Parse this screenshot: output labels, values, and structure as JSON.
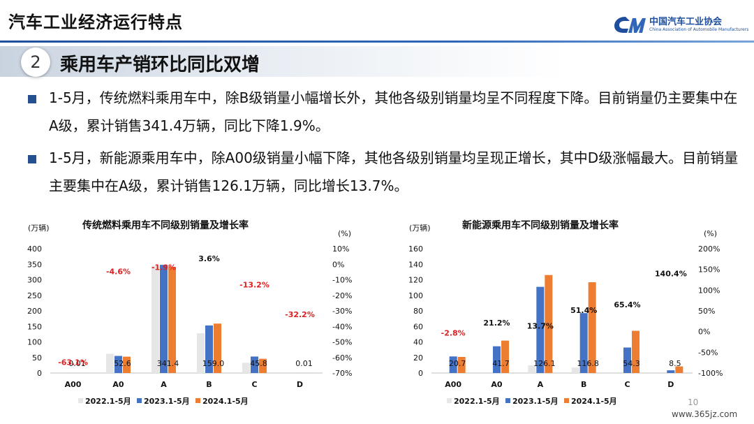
{
  "header": {
    "title": "汽车工业经济运行特点"
  },
  "logo": {
    "cn": "中国汽车工业协会",
    "en": "China Association of Automobile Manufacturers"
  },
  "section": {
    "number": "2",
    "title": "乘用车产销环比同比双增"
  },
  "bullets": [
    "1-5月，传统燃料乘用车中，除B级销量小幅增长外，其他各级别销量均呈不同程度下降。目前销量仍主要集中在A级，累计销售341.4万辆，同比下降1.9%。",
    "1-5月，新能源乘用车中，除A00级销量小幅下降，其他各级别销量均呈现正增长，其中D级涨幅最大。目前销量主要集中在A级，累计销售126.1万辆，同比增长13.7%。"
  ],
  "colors": {
    "y2022": "#e6e6e6",
    "y2023": "#4472c4",
    "y2024": "#ed7d31",
    "negative": "#e02020",
    "brand": "#1f4e9c"
  },
  "chart_data": [
    {
      "type": "bar",
      "title": "传统燃料乘用车不同级别销量及增长率",
      "left_unit": "(万辆)",
      "right_unit": "(%)",
      "categories": [
        "A00",
        "A0",
        "A",
        "B",
        "C",
        "D"
      ],
      "ylim": [
        0,
        400
      ],
      "y_ticks": [
        0,
        50,
        100,
        150,
        200,
        250,
        300,
        350,
        400
      ],
      "y2lim": [
        -70,
        10
      ],
      "y2_ticks": [
        "10%",
        "0%",
        "-10%",
        "-20%",
        "-30%",
        "-40%",
        "-50%",
        "-60%",
        "-70%"
      ],
      "series": [
        {
          "name": "2022.1-5月",
          "values": [
            0.01,
            62,
            345,
            128,
            33,
            0.01
          ]
        },
        {
          "name": "2023.1-5月",
          "values": [
            0.02,
            55,
            348,
            153,
            53,
            0.01
          ]
        },
        {
          "name": "2024.1-5月",
          "values": [
            0.01,
            52.6,
            341.4,
            159.0,
            45.8,
            0.01
          ]
        }
      ],
      "value_labels": [
        "0.01",
        "52.6",
        "341.4",
        "159.0",
        "45.8",
        "0.01"
      ],
      "growth_labels": [
        "-63.1%",
        "-4.6%",
        "-1.9%",
        "3.6%",
        "-13.2%",
        "-32.2%"
      ],
      "growth_values": [
        -63.1,
        -4.6,
        -1.9,
        3.6,
        -13.2,
        -32.2
      ],
      "legend": "bottom"
    },
    {
      "type": "bar",
      "title": "新能源乘用车不同级别销量及增长率",
      "left_unit": "(万辆)",
      "right_unit": "(%)",
      "categories": [
        "A00",
        "A0",
        "A",
        "B",
        "C",
        "D"
      ],
      "ylim": [
        0,
        160
      ],
      "y_ticks": [
        0,
        20,
        40,
        60,
        80,
        100,
        120,
        140,
        160
      ],
      "y2lim": [
        -100,
        200
      ],
      "y2_ticks": [
        "200%",
        "150%",
        "100%",
        "50%",
        "0%",
        "-50%",
        "-100%"
      ],
      "series": [
        {
          "name": "2022.1-5月",
          "values": [
            0,
            0,
            10,
            7,
            0,
            0
          ]
        },
        {
          "name": "2023.1-5月",
          "values": [
            21.3,
            34.4,
            110.9,
            77.1,
            32.8,
            3.5
          ]
        },
        {
          "name": "2024.1-5月",
          "values": [
            20.7,
            41.7,
            126.1,
            116.8,
            54.3,
            8.5
          ]
        }
      ],
      "value_labels": [
        "20.7",
        "41.7",
        "126.1",
        "116.8",
        "54.3",
        "8.5"
      ],
      "growth_labels": [
        "-2.8%",
        "21.2%",
        "13.7%",
        "51.4%",
        "65.4%",
        "140.4%"
      ],
      "growth_values": [
        -2.8,
        21.2,
        13.7,
        51.4,
        65.4,
        140.4
      ],
      "legend": "bottom"
    }
  ],
  "footer": {
    "page": "10",
    "site": "www.365jz.com"
  }
}
